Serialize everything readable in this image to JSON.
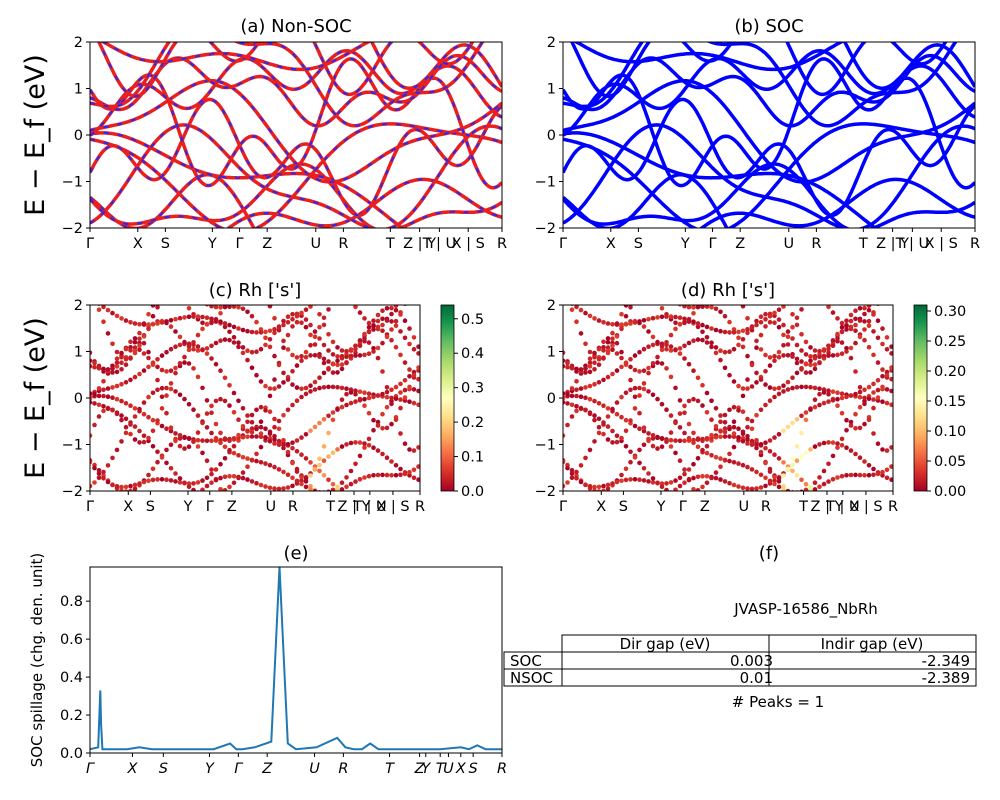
{
  "colors": {
    "nonsoc_band": "#e82020",
    "nonsoc_dash": "#2a2af0",
    "soc_band": "#0000ff",
    "spillage_line": "#1f77b4",
    "colormap": "RdYlGn"
  },
  "chart_data": [
    {
      "id": "a",
      "type": "line",
      "title": "(a) Non-SOC",
      "ylabel": "E − E_f (eV)",
      "ylim": [
        -2,
        2
      ],
      "yticks": [
        "−2",
        "−1",
        "0",
        "1",
        "2"
      ],
      "xtick_labels": [
        "Γ",
        "X",
        "S",
        "Y",
        "Γ",
        "Z",
        "U",
        "R",
        "T",
        "Z | Y",
        "T | U",
        "X | S",
        "R"
      ],
      "series_style": "red solid with blue dashes"
    },
    {
      "id": "b",
      "type": "line",
      "title": "(b) SOC",
      "ylim": [
        -2,
        2
      ],
      "yticks": [
        "−2",
        "−1",
        "0",
        "1",
        "2"
      ],
      "xtick_labels": [
        "Γ",
        "X",
        "S",
        "Y",
        "Γ",
        "Z",
        "U",
        "R",
        "T",
        "Z | Y",
        "T | U",
        "X | S",
        "R"
      ],
      "series_style": "blue"
    },
    {
      "id": "c",
      "type": "scatter",
      "title": "(c)  Rh ['s']",
      "ylabel": "E − E_f (eV)",
      "ylim": [
        -2,
        2
      ],
      "yticks": [
        "−2",
        "−1",
        "0",
        "1",
        "2"
      ],
      "xtick_labels": [
        "Γ",
        "X",
        "S",
        "Y",
        "Γ",
        "Z",
        "U",
        "R",
        "T",
        "Z | Y",
        "T | U",
        "X | S",
        "R"
      ],
      "colorbar": {
        "min": 0.0,
        "max": 0.54,
        "ticks": [
          "0.0",
          "0.1",
          "0.2",
          "0.3",
          "0.4",
          "0.5"
        ]
      }
    },
    {
      "id": "d",
      "type": "scatter",
      "title": "(d) Rh ['s']",
      "ylim": [
        -2,
        2
      ],
      "yticks": [
        "−2",
        "−1",
        "0",
        "1",
        "2"
      ],
      "xtick_labels": [
        "Γ",
        "X",
        "S",
        "Y",
        "Γ",
        "Z",
        "U",
        "R",
        "T",
        "Z | Y",
        "T | U",
        "X | S",
        "R"
      ],
      "colorbar": {
        "min": 0.0,
        "max": 0.31,
        "ticks": [
          "0.00",
          "0.05",
          "0.10",
          "0.15",
          "0.20",
          "0.25",
          "0.30"
        ]
      }
    },
    {
      "id": "e",
      "type": "line",
      "title": "(e)",
      "ylabel": "SOC spillage (chg. den. unit)",
      "ylim": [
        0,
        0.98
      ],
      "yticks": [
        "0.0",
        "0.2",
        "0.4",
        "0.6",
        "0.8"
      ],
      "xtick_labels": [
        "Γ",
        "X",
        "S",
        "Y",
        "Γ",
        "Z",
        "U",
        "R",
        "T",
        "Z",
        "Y",
        "T",
        "U",
        "X",
        "S",
        "R"
      ],
      "x": [
        0,
        0.02,
        0.025,
        0.027,
        0.03,
        0.05,
        0.07,
        0.09,
        0.12,
        0.15,
        0.2,
        0.3,
        0.34,
        0.355,
        0.36,
        0.37,
        0.4,
        0.44,
        0.46,
        0.48,
        0.5,
        0.55,
        0.6,
        0.62,
        0.64,
        0.66,
        0.68,
        0.7,
        0.75,
        0.8,
        0.85,
        0.9,
        0.92,
        0.94,
        0.96,
        1.0
      ],
      "y": [
        0.02,
        0.03,
        0.33,
        0.15,
        0.02,
        0.02,
        0.02,
        0.02,
        0.03,
        0.02,
        0.02,
        0.02,
        0.05,
        0.02,
        0.02,
        0.02,
        0.03,
        0.06,
        0.98,
        0.05,
        0.02,
        0.03,
        0.08,
        0.03,
        0.02,
        0.02,
        0.05,
        0.02,
        0.02,
        0.02,
        0.02,
        0.03,
        0.02,
        0.04,
        0.02,
        0.02
      ]
    },
    {
      "id": "f",
      "type": "table",
      "title": "(f)",
      "subtitle": "JVASP-16586_NbRh",
      "columns": [
        "Dir gap (eV)",
        "Indir gap (eV)"
      ],
      "rows": [
        {
          "label": "SOC",
          "values": [
            "0.003",
            "-2.349"
          ]
        },
        {
          "label": "NSOC",
          "values": [
            "0.01",
            "-2.389"
          ]
        }
      ],
      "note": "# Peaks = 1"
    }
  ]
}
